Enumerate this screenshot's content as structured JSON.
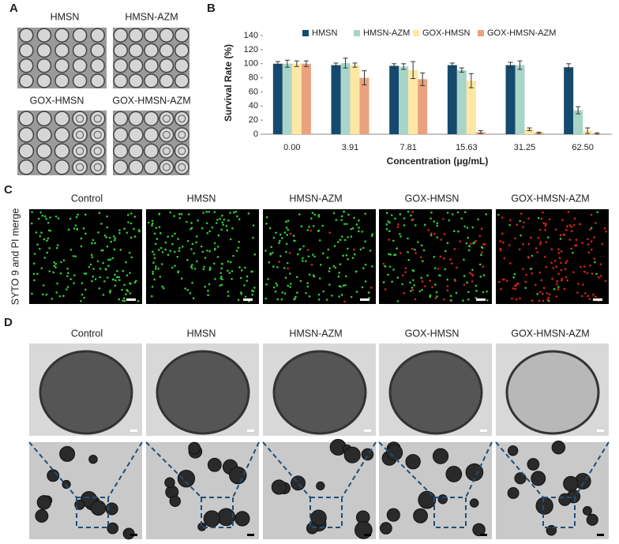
{
  "panels": {
    "a": {
      "label": "A",
      "titles": [
        "HMSN",
        "HMSN-AZM",
        "GOX-HMSN",
        "GOX-HMSN-AZM"
      ]
    },
    "b": {
      "label": "B"
    },
    "c": {
      "label": "C",
      "side_label": "SYTO 9 and PI merge",
      "titles": [
        "Control",
        "HMSN",
        "HMSN-AZM",
        "GOX-HMSN",
        "GOX-HMSN-AZM"
      ]
    },
    "d": {
      "label": "D",
      "titles": [
        "Control",
        "HMSN",
        "HMSN-AZM",
        "GOX-HMSN",
        "GOX-HMSN-AZM"
      ]
    }
  },
  "chart_data": {
    "type": "bar",
    "y_label": "Survival Rate (%)",
    "x_label": "Concentration (μg/mL)",
    "categories": [
      "0.00",
      "3.91",
      "7.81",
      "15.63",
      "31.25",
      "62.50"
    ],
    "series": [
      {
        "name": "HMSN",
        "color": "#154a6e",
        "values": [
          100,
          98,
          97,
          98,
          98,
          95
        ],
        "errors": [
          3,
          3,
          3,
          3,
          4,
          5
        ]
      },
      {
        "name": "HMSN-AZM",
        "color": "#a9d4c8",
        "values": [
          100,
          101,
          96,
          91,
          98,
          34
        ],
        "errors": [
          5,
          7,
          4,
          3,
          6,
          5
        ]
      },
      {
        "name": "GOX-HMSN",
        "color": "#fde7a2",
        "values": [
          100,
          98,
          91,
          76,
          7,
          5
        ],
        "errors": [
          4,
          3,
          12,
          10,
          2,
          4
        ]
      },
      {
        "name": "GOX-HMSN-AZM",
        "color": "#e9a27d",
        "values": [
          100,
          80,
          78,
          3,
          2,
          1
        ],
        "errors": [
          4,
          10,
          9,
          2,
          1,
          1
        ]
      }
    ],
    "ylim": [
      0,
      140
    ],
    "yticks": [
      0,
      20,
      40,
      60,
      80,
      100,
      120,
      140
    ],
    "legend": "top"
  }
}
